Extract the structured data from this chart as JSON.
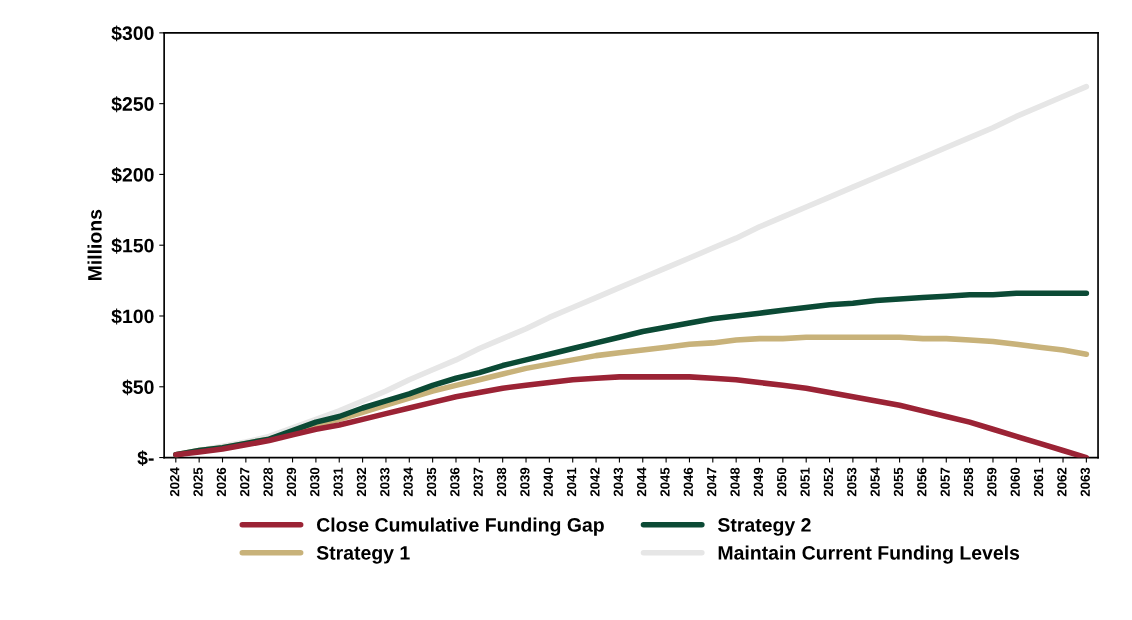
{
  "chart_data": {
    "type": "line",
    "ylabel": "Millions",
    "categories": [
      "2024",
      "2025",
      "2026",
      "2027",
      "2028",
      "2029",
      "2030",
      "2031",
      "2032",
      "2033",
      "2034",
      "2035",
      "2036",
      "2037",
      "2038",
      "2039",
      "2040",
      "2041",
      "2042",
      "2043",
      "2044",
      "2045",
      "2046",
      "2047",
      "2048",
      "2049",
      "2050",
      "2051",
      "2052",
      "2053",
      "2054",
      "2055",
      "2056",
      "2057",
      "2058",
      "2059",
      "2060",
      "2061",
      "2062",
      "2063"
    ],
    "series": [
      {
        "name": "Maintain Current Funding Levels",
        "color": "#e6e6e6",
        "values": [
          2,
          5,
          8,
          11,
          15,
          21,
          27,
          33,
          40,
          47,
          55,
          62,
          69,
          77,
          84,
          91,
          99,
          106,
          113,
          120,
          127,
          134,
          141,
          148,
          155,
          163,
          170,
          177,
          184,
          191,
          198,
          205,
          212,
          219,
          226,
          233,
          241,
          248,
          255,
          262
        ]
      },
      {
        "name": "Strategy 1",
        "color": "#c8b27a",
        "values": [
          2,
          5,
          7,
          10,
          13,
          18,
          23,
          27,
          32,
          37,
          42,
          47,
          51,
          55,
          59,
          63,
          66,
          69,
          72,
          74,
          76,
          78,
          80,
          81,
          83,
          84,
          84,
          85,
          85,
          85,
          85,
          85,
          84,
          84,
          83,
          82,
          80,
          78,
          76,
          73
        ]
      },
      {
        "name": "Strategy 2",
        "color": "#0b4a35",
        "values": [
          2,
          5,
          7,
          10,
          13,
          19,
          25,
          29,
          35,
          40,
          45,
          51,
          56,
          60,
          65,
          69,
          73,
          77,
          81,
          85,
          89,
          92,
          95,
          98,
          100,
          102,
          104,
          106,
          108,
          109,
          111,
          112,
          113,
          114,
          115,
          115,
          116,
          116,
          116,
          116
        ]
      },
      {
        "name": "Close Cumulative Funding Gap",
        "color": "#9b2335",
        "values": [
          2,
          4,
          6,
          9,
          12,
          16,
          20,
          23,
          27,
          31,
          35,
          39,
          43,
          46,
          49,
          51,
          53,
          55,
          56,
          57,
          57,
          57,
          57,
          56,
          55,
          53,
          51,
          49,
          46,
          43,
          40,
          37,
          33,
          29,
          25,
          20,
          15,
          10,
          5,
          0
        ]
      }
    ],
    "ylim": [
      0,
      300
    ],
    "yticks": [
      {
        "value": 0,
        "label": "$-"
      },
      {
        "value": 50,
        "label": "$50"
      },
      {
        "value": 100,
        "label": "$100"
      },
      {
        "value": 150,
        "label": "$150"
      },
      {
        "value": 200,
        "label": "$200"
      },
      {
        "value": 250,
        "label": "$250"
      },
      {
        "value": 300,
        "label": "$300"
      }
    ],
    "grid": false,
    "legend": "bottom",
    "marker": "none",
    "line_style": "solid"
  }
}
